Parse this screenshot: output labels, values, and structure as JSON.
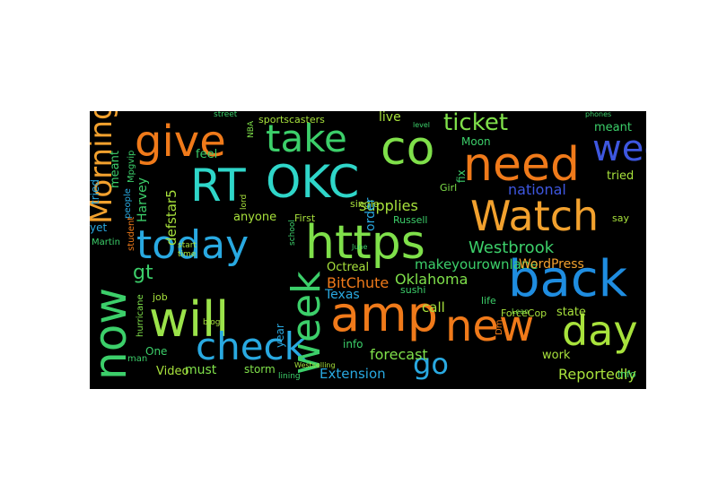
{
  "wordcloud": {
    "background": "#000000",
    "words": [
      {
        "text": "today",
        "color": "#29a9e1"
      },
      {
        "text": "https",
        "color": "#7fe04a"
      },
      {
        "text": "Watch",
        "color": "#f2a12e"
      },
      {
        "text": "back",
        "color": "#1f8de0"
      },
      {
        "text": "OKC",
        "color": "#2fd6c9"
      },
      {
        "text": "RT",
        "color": "#2fd6c9"
      },
      {
        "text": "need",
        "color": "#f07a1a"
      },
      {
        "text": "give",
        "color": "#f07a1a"
      },
      {
        "text": "take",
        "color": "#3ccf6a"
      },
      {
        "text": "co",
        "color": "#7fe04a"
      },
      {
        "text": "will",
        "color": "#9be34a"
      },
      {
        "text": "amp",
        "color": "#f07a1a"
      },
      {
        "text": "new",
        "color": "#f07a1a"
      },
      {
        "text": "day",
        "color": "#a8e23c"
      },
      {
        "text": "check",
        "color": "#3ccf6a"
      },
      {
        "text": "now",
        "color": "#29a9e1"
      },
      {
        "text": "week",
        "color": "#3ccf6a"
      },
      {
        "text": "go",
        "color": "#3e57e0"
      },
      {
        "text": "ticket",
        "color": "#29a9e1"
      },
      {
        "text": "Morning",
        "color": "#7fe04a"
      },
      {
        "text": "gt",
        "color": "#f2a12e"
      },
      {
        "text": "supplies",
        "color": "#3ccf6a"
      },
      {
        "text": "Westbrook",
        "color": "#a8e23c"
      },
      {
        "text": "makeyourownlane",
        "color": "#3ccf6a"
      },
      {
        "text": "Oklahoma",
        "color": "#3ccf6a"
      },
      {
        "text": "BitChute",
        "color": "#7fe04a"
      },
      {
        "text": "Texas",
        "color": "#f07a1a"
      },
      {
        "text": "national",
        "color": "#29a9e1"
      },
      {
        "text": "WordPress",
        "color": "#3e57e0"
      },
      {
        "text": "Extension",
        "color": "#f2a12e"
      },
      {
        "text": "Reportedly",
        "color": "#29a9e1"
      },
      {
        "text": "work",
        "color": "#a8e23c"
      },
      {
        "text": "forecast",
        "color": "#a8e23c"
      },
      {
        "text": "call",
        "color": "#7fe04a"
      },
      {
        "text": "must",
        "color": "#a8e23c"
      },
      {
        "text": "Video",
        "color": "#7fe04a"
      },
      {
        "text": "One",
        "color": "#a8e23c"
      },
      {
        "text": "storm",
        "color": "#3ccf6a"
      },
      {
        "text": "year",
        "color": "#7fe04a"
      },
      {
        "text": "state",
        "color": "#29a9e1"
      },
      {
        "text": "defstar5",
        "color": "#a8e23c"
      },
      {
        "text": "Harvey",
        "color": "#a8e23c"
      },
      {
        "text": "order",
        "color": "#3ccf6a"
      },
      {
        "text": "live",
        "color": "#29a9e1"
      },
      {
        "text": "anyone",
        "color": "#a8e23c"
      },
      {
        "text": "feel",
        "color": "#a8e23c"
      },
      {
        "text": "Octreal",
        "color": "#3ccf6a"
      },
      {
        "text": "meant",
        "color": "#a8e23c"
      },
      {
        "text": "tried",
        "color": "#3ccf6a"
      },
      {
        "text": "across",
        "color": "#29a9e1"
      },
      {
        "text": "fix",
        "color": "#3ccf6a"
      },
      {
        "text": "say",
        "color": "#a8e23c"
      },
      {
        "text": "Girl",
        "color": "#3ccf6a"
      },
      {
        "text": "Moon",
        "color": "#a8e23c"
      },
      {
        "text": "info",
        "color": "#3ccf6a"
      },
      {
        "text": "ForceCop",
        "color": "#7fe04a"
      },
      {
        "text": "sportscasters",
        "color": "#3ccf6a"
      },
      {
        "text": "Russell",
        "color": "#3ccf6a"
      },
      {
        "text": "First",
        "color": "#a8e23c"
      },
      {
        "text": "Mpgvip",
        "color": "#a8e23c"
      },
      {
        "text": "people",
        "color": "#3ccf6a"
      },
      {
        "text": "student",
        "color": "#a8e23c"
      },
      {
        "text": "hurricane",
        "color": "#3ccf6a"
      },
      {
        "text": "RECORD",
        "color": "#29a9e1"
      },
      {
        "text": "job",
        "color": "#f07a1a"
      },
      {
        "text": "sushi",
        "color": "#7fe04a"
      },
      {
        "text": "life",
        "color": "#a8e23c"
      },
      {
        "text": "single",
        "color": "#3ccf6a"
      },
      {
        "text": "yet",
        "color": "#3ccf6a"
      },
      {
        "text": "man",
        "color": "#a8e23c"
      },
      {
        "text": "Dm",
        "color": "#29a9e1"
      },
      {
        "text": "NBA",
        "color": "#3ccf6a"
      },
      {
        "text": "street",
        "color": "#f07a1a"
      },
      {
        "text": "blog",
        "color": "#7fe04a"
      },
      {
        "text": "lining",
        "color": "#3ccf6a"
      },
      {
        "text": "school",
        "color": "#a8e23c"
      },
      {
        "text": "start",
        "color": "#3ccf6a"
      },
      {
        "text": "time",
        "color": "#3ccf6a"
      },
      {
        "text": "lord",
        "color": "#a8e23c"
      },
      {
        "text": "Martin",
        "color": "#a8e23c"
      },
      {
        "text": "Lean",
        "color": "#a8e23c"
      },
      {
        "text": "June",
        "color": "#3ccf6a"
      },
      {
        "text": "phones",
        "color": "#7fe04a"
      },
      {
        "text": "level",
        "color": "#3ccf6a"
      },
      {
        "text": "Westselling",
        "color": "#3ccf6a"
      },
      {
        "text": "rhythm",
        "color": "#3ccf6a"
      },
      {
        "text": "large",
        "color": "#a8e23c"
      }
    ]
  }
}
